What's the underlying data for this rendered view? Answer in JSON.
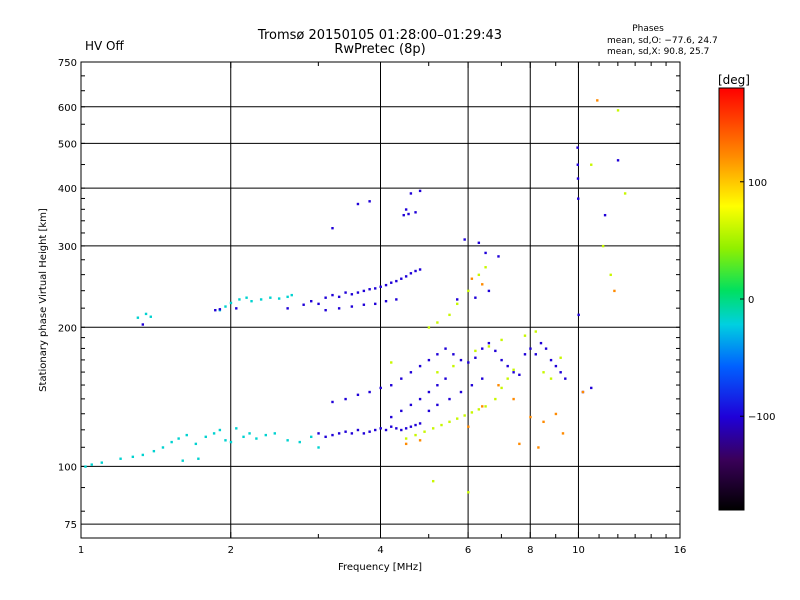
{
  "header": {
    "title_line1": "Tromsø 20150105 01:28:00–01:29:43",
    "title_line2": "RwPretec (8p)",
    "status": "HV Off",
    "status_color": "#d40000",
    "phases_title": "Phases",
    "phases_line1": "mean, sd,O: −77.6, 24.7",
    "phases_line2": "mean, sd,X:  90.8, 25.7"
  },
  "chart_data": {
    "type": "scatter",
    "xlabel": "Frequency [MHz]",
    "ylabel": "Stationary phase Virtual Height [km]",
    "x_scale": "log",
    "y_scale": "log",
    "xlim": [
      1,
      16
    ],
    "ylim": [
      70,
      750
    ],
    "x_ticks": [
      1,
      2,
      4,
      6,
      8,
      10,
      16
    ],
    "x_tick_labels": [
      "1",
      "2",
      "4",
      "6",
      "8",
      "10",
      "16"
    ],
    "y_ticks": [
      75,
      100,
      200,
      300,
      400,
      500,
      600,
      750
    ],
    "y_tick_labels": [
      "75",
      "100",
      "200",
      "300",
      "400",
      "500",
      "600",
      "750"
    ],
    "grid": true,
    "colorbar": {
      "label": "[deg]",
      "range": [
        -180,
        180
      ],
      "ticks": [
        100,
        0,
        -100
      ],
      "tick_labels": [
        "100",
        "0",
        "−100"
      ]
    },
    "series": [
      {
        "color_value": -35,
        "points": [
          [
            1.02,
            100
          ],
          [
            1.05,
            101
          ],
          [
            1.1,
            102
          ],
          [
            1.2,
            104
          ],
          [
            1.27,
            105
          ],
          [
            1.33,
            106
          ],
          [
            1.4,
            108
          ],
          [
            1.46,
            110
          ],
          [
            1.52,
            113
          ],
          [
            1.57,
            115
          ],
          [
            1.63,
            117
          ],
          [
            1.7,
            112
          ],
          [
            1.78,
            116
          ],
          [
            1.85,
            118
          ],
          [
            1.9,
            120
          ],
          [
            1.95,
            114
          ],
          [
            2.0,
            113
          ],
          [
            2.05,
            121
          ],
          [
            2.12,
            116
          ],
          [
            2.18,
            118
          ],
          [
            2.25,
            115
          ],
          [
            2.35,
            117
          ],
          [
            2.45,
            118
          ],
          [
            2.6,
            114
          ],
          [
            2.75,
            113
          ],
          [
            2.9,
            116
          ],
          [
            3.0,
            110
          ],
          [
            1.3,
            210
          ],
          [
            1.35,
            214
          ],
          [
            1.38,
            211
          ],
          [
            1.9,
            218
          ],
          [
            1.95,
            222
          ],
          [
            2.0,
            226
          ],
          [
            2.08,
            230
          ],
          [
            2.15,
            232
          ],
          [
            2.2,
            228
          ],
          [
            2.3,
            230
          ],
          [
            2.4,
            232
          ],
          [
            2.5,
            231
          ],
          [
            2.6,
            233
          ],
          [
            2.65,
            235
          ],
          [
            1.6,
            103
          ],
          [
            1.72,
            104
          ]
        ]
      },
      {
        "color_value": -110,
        "points": [
          [
            1.33,
            203
          ],
          [
            1.86,
            218
          ],
          [
            1.9,
            219
          ],
          [
            2.05,
            220
          ],
          [
            2.6,
            220
          ],
          [
            2.8,
            224
          ],
          [
            2.9,
            228
          ],
          [
            3.0,
            225
          ],
          [
            3.1,
            232
          ],
          [
            3.2,
            235
          ],
          [
            3.3,
            233
          ],
          [
            3.4,
            238
          ],
          [
            3.5,
            236
          ],
          [
            3.6,
            238
          ],
          [
            3.7,
            240
          ],
          [
            3.8,
            242
          ],
          [
            3.9,
            243
          ],
          [
            4.0,
            245
          ],
          [
            4.1,
            247
          ],
          [
            4.2,
            250
          ],
          [
            4.3,
            252
          ],
          [
            4.4,
            255
          ],
          [
            4.5,
            258
          ],
          [
            4.6,
            262
          ],
          [
            4.7,
            265
          ],
          [
            4.8,
            267
          ],
          [
            3.1,
            218
          ],
          [
            3.3,
            220
          ],
          [
            3.5,
            222
          ],
          [
            3.7,
            224
          ],
          [
            3.9,
            225
          ],
          [
            4.1,
            228
          ],
          [
            4.3,
            230
          ],
          [
            3.0,
            118
          ],
          [
            3.1,
            116
          ],
          [
            3.2,
            117
          ],
          [
            3.3,
            118
          ],
          [
            3.4,
            119
          ],
          [
            3.5,
            118
          ],
          [
            3.6,
            120
          ],
          [
            3.7,
            118
          ],
          [
            3.8,
            119
          ],
          [
            3.9,
            120
          ],
          [
            4.0,
            121
          ],
          [
            4.1,
            120
          ],
          [
            4.2,
            122
          ],
          [
            4.3,
            121
          ],
          [
            4.4,
            120
          ],
          [
            4.5,
            121
          ],
          [
            4.6,
            122
          ],
          [
            4.7,
            123
          ],
          [
            4.8,
            124
          ],
          [
            3.2,
            138
          ],
          [
            3.4,
            140
          ],
          [
            3.6,
            143
          ],
          [
            3.8,
            145
          ],
          [
            4.0,
            148
          ],
          [
            4.2,
            150
          ],
          [
            4.4,
            155
          ],
          [
            4.6,
            160
          ],
          [
            4.8,
            165
          ],
          [
            5.0,
            170
          ],
          [
            5.2,
            175
          ],
          [
            5.4,
            180
          ],
          [
            5.6,
            175
          ],
          [
            5.8,
            170
          ],
          [
            6.0,
            168
          ],
          [
            6.2,
            172
          ],
          [
            6.4,
            180
          ],
          [
            6.6,
            185
          ],
          [
            6.8,
            178
          ],
          [
            7.0,
            170
          ],
          [
            7.2,
            165
          ],
          [
            7.4,
            160
          ],
          [
            7.6,
            158
          ],
          [
            7.8,
            175
          ],
          [
            8.0,
            180
          ],
          [
            8.2,
            175
          ],
          [
            8.4,
            185
          ],
          [
            8.6,
            180
          ],
          [
            8.8,
            170
          ],
          [
            9.0,
            165
          ],
          [
            9.2,
            160
          ],
          [
            9.4,
            155
          ],
          [
            4.2,
            128
          ],
          [
            4.4,
            132
          ],
          [
            4.6,
            136
          ],
          [
            4.8,
            140
          ],
          [
            5.0,
            145
          ],
          [
            5.2,
            150
          ],
          [
            5.4,
            155
          ],
          [
            5.0,
            132
          ],
          [
            5.2,
            136
          ],
          [
            5.5,
            140
          ],
          [
            5.8,
            145
          ],
          [
            6.1,
            150
          ],
          [
            6.4,
            155
          ],
          [
            4.45,
            350
          ],
          [
            4.55,
            352
          ],
          [
            4.7,
            355
          ],
          [
            4.6,
            390
          ],
          [
            4.8,
            395
          ],
          [
            4.5,
            360
          ],
          [
            3.6,
            370
          ],
          [
            3.2,
            328
          ],
          [
            3.8,
            375
          ],
          [
            9.95,
            490
          ],
          [
            9.96,
            450
          ],
          [
            9.97,
            420
          ],
          [
            9.98,
            380
          ],
          [
            10.0,
            213
          ],
          [
            11.3,
            350
          ],
          [
            12.0,
            460
          ],
          [
            5.9,
            310
          ],
          [
            6.3,
            305
          ],
          [
            6.5,
            290
          ],
          [
            6.9,
            285
          ],
          [
            5.7,
            230
          ],
          [
            6.2,
            232
          ],
          [
            6.6,
            240
          ],
          [
            10.2,
            145
          ],
          [
            10.6,
            148
          ]
        ]
      },
      {
        "color_value": 60,
        "points": [
          [
            4.5,
            115
          ],
          [
            4.7,
            117
          ],
          [
            4.9,
            119
          ],
          [
            5.1,
            121
          ],
          [
            5.3,
            123
          ],
          [
            5.5,
            125
          ],
          [
            5.7,
            127
          ],
          [
            5.9,
            129
          ],
          [
            6.1,
            131
          ],
          [
            6.3,
            133
          ],
          [
            6.5,
            135
          ],
          [
            6.8,
            140
          ],
          [
            7.0,
            148
          ],
          [
            7.2,
            155
          ],
          [
            7.4,
            162
          ],
          [
            5.0,
            200
          ],
          [
            5.2,
            205
          ],
          [
            5.5,
            213
          ],
          [
            5.7,
            225
          ],
          [
            6.0,
            240
          ],
          [
            6.3,
            260
          ],
          [
            6.5,
            270
          ],
          [
            4.2,
            168
          ],
          [
            6.2,
            178
          ],
          [
            6.6,
            182
          ],
          [
            7.0,
            188
          ],
          [
            7.8,
            192
          ],
          [
            8.2,
            196
          ],
          [
            9.2,
            172
          ],
          [
            10.6,
            450
          ],
          [
            11.2,
            300
          ],
          [
            11.6,
            260
          ],
          [
            12.0,
            590
          ],
          [
            12.4,
            390
          ],
          [
            5.2,
            160
          ],
          [
            5.6,
            165
          ],
          [
            8.5,
            160
          ],
          [
            8.8,
            155
          ],
          [
            6.0,
            88
          ],
          [
            5.1,
            93
          ]
        ]
      },
      {
        "color_value": 130,
        "points": [
          [
            4.5,
            112
          ],
          [
            4.8,
            114
          ],
          [
            6.0,
            122
          ],
          [
            6.4,
            135
          ],
          [
            6.9,
            150
          ],
          [
            7.4,
            140
          ],
          [
            8.0,
            128
          ],
          [
            8.5,
            125
          ],
          [
            9.0,
            130
          ],
          [
            10.2,
            145
          ],
          [
            11.8,
            240
          ],
          [
            10.9,
            620
          ],
          [
            6.1,
            255
          ],
          [
            6.4,
            248
          ],
          [
            7.6,
            112
          ],
          [
            8.3,
            110
          ],
          [
            9.3,
            118
          ]
        ]
      }
    ]
  }
}
